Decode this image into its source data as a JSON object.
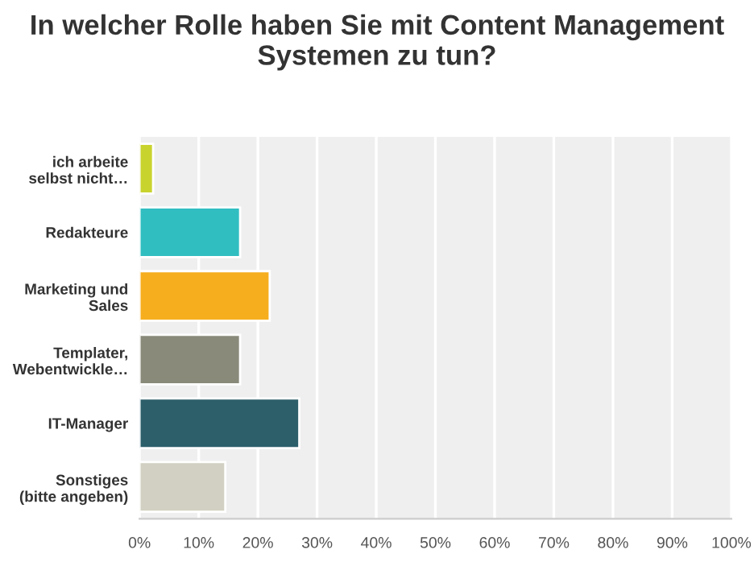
{
  "chart_data": {
    "type": "bar",
    "orientation": "horizontal",
    "title": "In welcher Rolle haben Sie mit Content Management Systemen zu tun?",
    "categories": [
      "ich arbeite\nselbst nicht…",
      "Redakteure",
      "Marketing und\nSales",
      "Templater,\nWebentwickle…",
      "IT-Manager",
      "Sonstiges\n(bitte angeben)"
    ],
    "values": [
      2.3,
      17,
      22,
      17,
      27,
      14.5
    ],
    "colors": [
      "#c9d32e",
      "#31bec1",
      "#f6ae1f",
      "#8a8a7b",
      "#2d5f6b",
      "#d2d0c2"
    ],
    "xlim": [
      0,
      100
    ],
    "xticks": [
      {
        "value": 0,
        "label": "0%"
      },
      {
        "value": 10,
        "label": "10%"
      },
      {
        "value": 20,
        "label": "20%"
      },
      {
        "value": 30,
        "label": "30%"
      },
      {
        "value": 40,
        "label": "40%"
      },
      {
        "value": 50,
        "label": "50%"
      },
      {
        "value": 60,
        "label": "60%"
      },
      {
        "value": 70,
        "label": "70%"
      },
      {
        "value": 80,
        "label": "80%"
      },
      {
        "value": 90,
        "label": "90%"
      },
      {
        "value": 100,
        "label": "100%"
      }
    ],
    "grid": "x",
    "legend": false
  }
}
